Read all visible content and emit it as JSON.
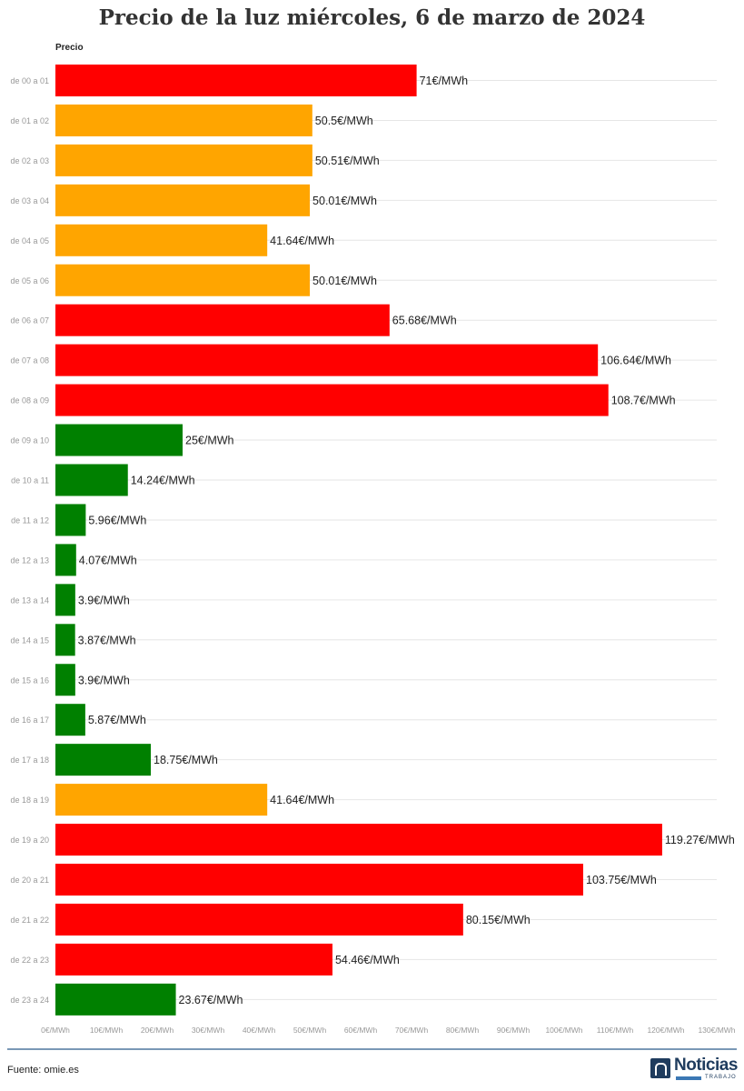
{
  "chart_data": {
    "type": "bar",
    "orientation": "horizontal",
    "title": "Precio de la luz miércoles, 6 de marzo de 2024",
    "series_header": "Precio",
    "unit_suffix": "€/MWh",
    "categories": [
      "de 00 a 01",
      "de 01 a 02",
      "de 02 a 03",
      "de 03 a 04",
      "de 04 a 05",
      "de 05 a 06",
      "de 06 a 07",
      "de 07 a 08",
      "de 08 a 09",
      "de 09 a 10",
      "de 10 a 11",
      "de 11 a 12",
      "de 12 a 13",
      "de 13 a 14",
      "de 14 a 15",
      "de 15 a 16",
      "de 16 a 17",
      "de 17 a 18",
      "de 18 a 19",
      "de 19 a 20",
      "de 20 a 21",
      "de 21 a 22",
      "de 22 a 23",
      "de 23 a 24"
    ],
    "values": [
      71,
      50.5,
      50.51,
      50.01,
      41.64,
      50.01,
      65.68,
      106.64,
      108.7,
      25,
      14.24,
      5.96,
      4.07,
      3.9,
      3.87,
      3.9,
      5.87,
      18.75,
      41.64,
      119.27,
      103.75,
      80.15,
      54.46,
      23.67
    ],
    "value_labels": [
      "71€/MWh",
      "50.5€/MWh",
      "50.51€/MWh",
      "50.01€/MWh",
      "41.64€/MWh",
      "50.01€/MWh",
      "65.68€/MWh",
      "106.64€/MWh",
      "108.7€/MWh",
      "25€/MWh",
      "14.24€/MWh",
      "5.96€/MWh",
      "4.07€/MWh",
      "3.9€/MWh",
      "3.87€/MWh",
      "3.9€/MWh",
      "5.87€/MWh",
      "18.75€/MWh",
      "41.64€/MWh",
      "119.27€/MWh",
      "103.75€/MWh",
      "80.15€/MWh",
      "54.46€/MWh",
      "23.67€/MWh"
    ],
    "bar_colors": [
      "red",
      "orange",
      "orange",
      "orange",
      "orange",
      "orange",
      "red",
      "red",
      "red",
      "green",
      "green",
      "green",
      "green",
      "green",
      "green",
      "green",
      "green",
      "green",
      "orange",
      "red",
      "red",
      "red",
      "red",
      "green"
    ],
    "xlim": [
      0,
      130
    ],
    "x_ticks": [
      0,
      10,
      20,
      30,
      40,
      50,
      60,
      70,
      80,
      90,
      100,
      110,
      120,
      130
    ],
    "x_tick_labels": [
      "0€/MWh",
      "10€/MWh",
      "20€/MWh",
      "30€/MWh",
      "40€/MWh",
      "50€/MWh",
      "60€/MWh",
      "70€/MWh",
      "80€/MWh",
      "90€/MWh",
      "100€/MWh",
      "110€/MWh",
      "120€/MWh",
      "130€/MWh"
    ],
    "grid": true,
    "legend": "none"
  },
  "colors": {
    "red": "#ff0000",
    "orange": "#ffa500",
    "green": "#008000",
    "label_text": "#222222",
    "tick_text": "#999999",
    "grid": "#e6e6e6",
    "footer_rule": "#7a98b6"
  },
  "footer": {
    "source": "Fuente: omie.es",
    "brand_name": "Noticias",
    "brand_sub": "TRABAJO"
  }
}
